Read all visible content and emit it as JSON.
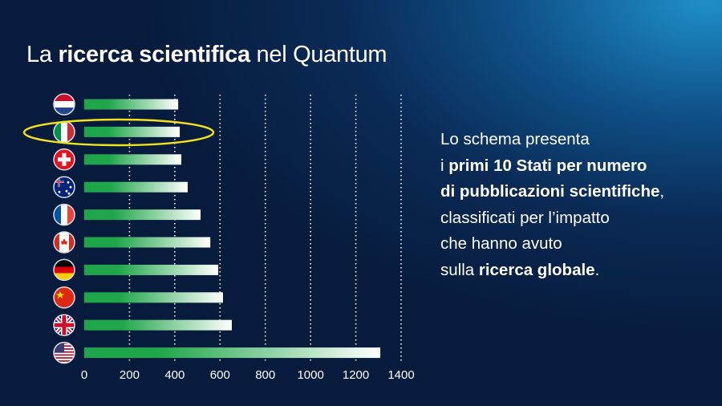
{
  "chart_data": {
    "type": "bar",
    "orientation": "horizontal",
    "title": [
      "La",
      "ricerca scientifica",
      "nel Quantum"
    ],
    "description": [
      [
        {
          "text": "Lo schema presenta",
          "bold": false
        }
      ],
      [
        {
          "text": "i ",
          "bold": false
        },
        {
          "text": "primi 10 Stati per numero",
          "bold": true
        }
      ],
      [
        {
          "text": "di pubblicazioni scientifiche",
          "bold": true
        },
        {
          "text": ",",
          "bold": false
        }
      ],
      [
        {
          "text": "classificati per l’impatto",
          "bold": false
        }
      ],
      [
        {
          "text": "che hanno avuto",
          "bold": false
        }
      ],
      [
        {
          "text": "sulla ",
          "bold": false
        },
        {
          "text": "ricerca globale",
          "bold": true
        },
        {
          "text": ".",
          "bold": false
        }
      ]
    ],
    "categories": [
      null,
      null,
      null,
      null,
      null,
      null,
      null,
      null,
      null,
      null
    ],
    "values": [
      415,
      422,
      429,
      457,
      514,
      557,
      592,
      613,
      652,
      1308
    ],
    "color": "#1fa64a",
    "xlim": [
      0,
      1400
    ],
    "xticks": [
      0,
      200,
      400,
      600,
      800,
      1000,
      1200,
      1400
    ],
    "grid": true
  }
}
